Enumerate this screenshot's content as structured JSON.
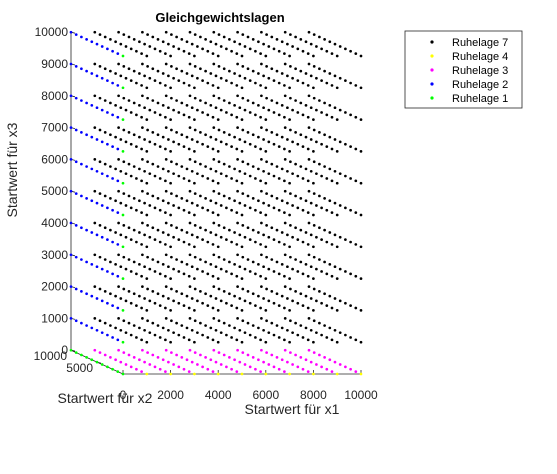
{
  "chart_data": {
    "type": "scatter",
    "title": "Gleichgewichtslagen",
    "xlabel": "Startwert für x1",
    "ylabel": "Startwert für x2",
    "zlabel": "Startwert für x3",
    "xlim": [
      0,
      10000
    ],
    "ylim": [
      0,
      10000
    ],
    "zlim": [
      0,
      10000
    ],
    "x_ticks": [
      "0",
      "2000",
      "4000",
      "6000",
      "8000",
      "10000"
    ],
    "y_ticks": [
      "5000",
      "10000"
    ],
    "z_ticks": [
      "0",
      "1000",
      "2000",
      "3000",
      "4000",
      "5000",
      "6000",
      "7000",
      "8000",
      "9000",
      "10000"
    ],
    "grid_step": 1000,
    "legend_position": "top-right",
    "series": [
      {
        "name": "Ruhelage 7",
        "color": "#000000",
        "region": "x1 > 0 and x3 > 0"
      },
      {
        "name": "Ruhelage 4",
        "color": "#ffff00",
        "region": "x1 > 0, x3 = 0, x2 = 0"
      },
      {
        "name": "Ruhelage 3",
        "color": "#ff00ff",
        "region": "x1 > 0, x3 = 0"
      },
      {
        "name": "Ruhelage 2",
        "color": "#0000ff",
        "region": "x1 = 0, x3 > 0"
      },
      {
        "name": "Ruhelage 1",
        "color": "#00ff00",
        "region": "x1 = 0, x3 = 0 or x2 = 0"
      }
    ]
  }
}
